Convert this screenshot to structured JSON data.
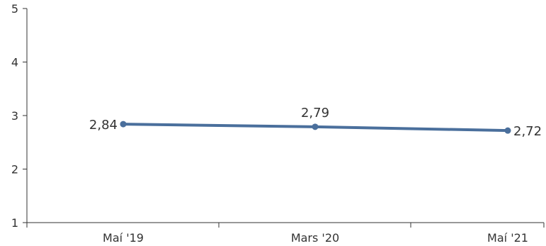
{
  "chart_data": {
    "type": "line",
    "title": "",
    "xlabel": "",
    "ylabel": "",
    "categories": [
      "Maí '19",
      "Mars '20",
      "Maí '21"
    ],
    "series": [
      {
        "values": [
          2.84,
          2.79,
          2.72
        ],
        "labels": [
          "2,84",
          "2,79",
          "2,72"
        ],
        "color": "#4a6f9c"
      }
    ],
    "ylim": [
      1,
      5
    ],
    "yticks": [
      "1",
      "2",
      "3",
      "4",
      "5"
    ],
    "grid": false,
    "legend": "none"
  }
}
